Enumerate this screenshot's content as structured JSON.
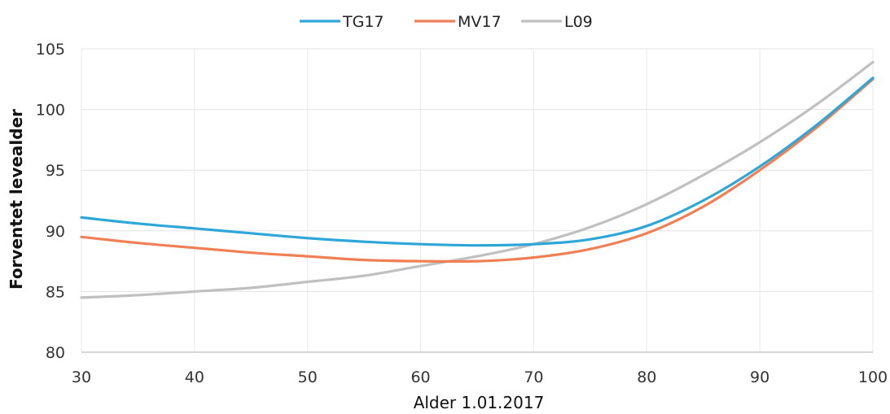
{
  "chart_data": {
    "type": "line",
    "xlabel": "Alder 1.01.2017",
    "ylabel": "Forventet levealder",
    "xlim": [
      30,
      100
    ],
    "ylim": [
      80,
      105
    ],
    "x_ticks": [
      "30",
      "40",
      "50",
      "60",
      "70",
      "80",
      "90",
      "100"
    ],
    "y_ticks": [
      "80",
      "85",
      "90",
      "95",
      "100",
      "105"
    ],
    "grid": true,
    "legend_position": "top",
    "x": [
      30,
      35,
      40,
      45,
      50,
      55,
      60,
      65,
      70,
      75,
      80,
      85,
      90,
      95,
      100
    ],
    "series": [
      {
        "name": "TG17",
        "color": "#2ea7d8",
        "values": [
          91.1,
          90.6,
          90.2,
          89.8,
          89.4,
          89.1,
          88.9,
          88.8,
          88.9,
          89.3,
          90.4,
          92.5,
          95.3,
          98.7,
          102.6
        ]
      },
      {
        "name": "MV17",
        "color": "#f07f55",
        "values": [
          89.5,
          89.0,
          88.6,
          88.2,
          87.9,
          87.6,
          87.5,
          87.5,
          87.8,
          88.5,
          89.8,
          92.0,
          95.0,
          98.5,
          102.5
        ]
      },
      {
        "name": "L09",
        "color": "#c0c0c0",
        "values": [
          84.5,
          84.7,
          85.0,
          85.3,
          85.8,
          86.3,
          87.1,
          87.9,
          88.9,
          90.3,
          92.2,
          94.6,
          97.3,
          100.4,
          103.9
        ]
      }
    ]
  }
}
